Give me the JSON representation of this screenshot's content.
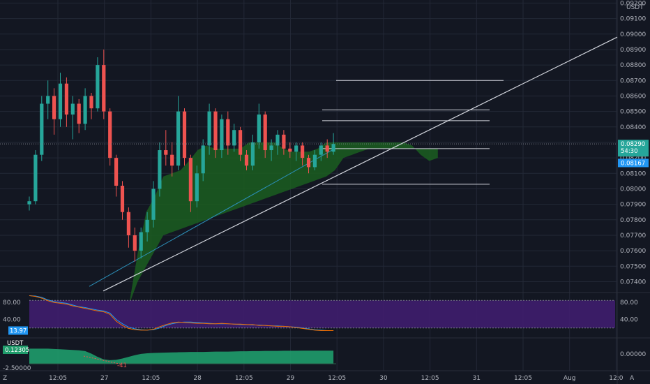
{
  "quote_currency": "USDT",
  "colors": {
    "background": "#131722",
    "grid": "#232836",
    "up": "#26a69a",
    "down": "#ef5350",
    "cloud": "#1b5e20",
    "rsi_band": "#3f1d6e",
    "stoch_fill": "#1f9c6b",
    "trendline": "#d1d4dc"
  },
  "chart_data": [
    {
      "type": "candlestick",
      "title": "",
      "y_axis_ticks": [
        "0.07400",
        "0.07500",
        "0.07600",
        "0.07700",
        "0.07800",
        "0.07900",
        "0.08000",
        "0.08100",
        "0.08200",
        "0.08300",
        "0.08400",
        "0.08500",
        "0.08600",
        "0.08700",
        "0.08800",
        "0.08900",
        "0.09000",
        "0.09100",
        "0.09200"
      ],
      "ylim": [
        0.0733,
        0.0922
      ],
      "x_axis_ticks": [
        "12:05",
        "27",
        "12:05",
        "28",
        "12:05",
        "29",
        "12:05",
        "30",
        "12:05",
        "31",
        "12:05",
        "Aug",
        "12:0"
      ],
      "last_price": "0.08290",
      "countdown": "54:30",
      "cloud_price": "0.08167",
      "series": [
        {
          "name": "candles",
          "ohlc": [
            [
              0.079,
              0.0795,
              0.0786,
              0.0792
            ],
            [
              0.0792,
              0.0825,
              0.079,
              0.0822
            ],
            [
              0.0822,
              0.086,
              0.0818,
              0.0855
            ],
            [
              0.0855,
              0.087,
              0.0845,
              0.086
            ],
            [
              0.086,
              0.0865,
              0.0835,
              0.0845
            ],
            [
              0.0845,
              0.0875,
              0.084,
              0.0868
            ],
            [
              0.0868,
              0.0872,
              0.084,
              0.0848
            ],
            [
              0.0848,
              0.086,
              0.0832,
              0.0855
            ],
            [
              0.0855,
              0.0858,
              0.0836,
              0.0842
            ],
            [
              0.0842,
              0.0865,
              0.0838,
              0.086
            ],
            [
              0.086,
              0.0862,
              0.0845,
              0.0852
            ],
            [
              0.0852,
              0.0885,
              0.085,
              0.088
            ],
            [
              0.088,
              0.089,
              0.0845,
              0.085
            ],
            [
              0.085,
              0.0852,
              0.0815,
              0.082
            ],
            [
              0.082,
              0.0822,
              0.0795,
              0.0802
            ],
            [
              0.0802,
              0.0805,
              0.078,
              0.0785
            ],
            [
              0.0785,
              0.0788,
              0.0762,
              0.077
            ],
            [
              0.077,
              0.0775,
              0.0753,
              0.076
            ],
            [
              0.076,
              0.0775,
              0.0755,
              0.0772
            ],
            [
              0.0772,
              0.0785,
              0.0766,
              0.078
            ],
            [
              0.078,
              0.0805,
              0.0775,
              0.08
            ],
            [
              0.08,
              0.083,
              0.0795,
              0.0825
            ],
            [
              0.0825,
              0.0838,
              0.0815,
              0.0822
            ],
            [
              0.0822,
              0.083,
              0.0808,
              0.0815
            ],
            [
              0.0815,
              0.086,
              0.0812,
              0.085
            ],
            [
              0.085,
              0.0852,
              0.0815,
              0.082
            ],
            [
              0.082,
              0.0822,
              0.0785,
              0.0792
            ],
            [
              0.0792,
              0.0815,
              0.0788,
              0.081
            ],
            [
              0.081,
              0.0832,
              0.0805,
              0.0828
            ],
            [
              0.0828,
              0.0855,
              0.0822,
              0.085
            ],
            [
              0.085,
              0.0852,
              0.082,
              0.0825
            ],
            [
              0.0825,
              0.0848,
              0.082,
              0.0845
            ],
            [
              0.0845,
              0.085,
              0.0822,
              0.0828
            ],
            [
              0.0828,
              0.0842,
              0.0824,
              0.0838
            ],
            [
              0.0838,
              0.084,
              0.0818,
              0.0822
            ],
            [
              0.0822,
              0.0825,
              0.0812,
              0.0815
            ],
            [
              0.0815,
              0.0835,
              0.0812,
              0.083
            ],
            [
              0.083,
              0.0855,
              0.0826,
              0.0848
            ],
            [
              0.0848,
              0.085,
              0.082,
              0.0825
            ],
            [
              0.0825,
              0.0832,
              0.0818,
              0.0828
            ],
            [
              0.0828,
              0.0838,
              0.0822,
              0.0835
            ],
            [
              0.0835,
              0.0838,
              0.0822,
              0.0826
            ],
            [
              0.0826,
              0.083,
              0.082,
              0.0824
            ],
            [
              0.0824,
              0.083,
              0.0818,
              0.0828
            ],
            [
              0.0828,
              0.083,
              0.0815,
              0.082
            ],
            [
              0.082,
              0.0822,
              0.081,
              0.0814
            ],
            [
              0.0814,
              0.0825,
              0.0812,
              0.0822
            ],
            [
              0.0822,
              0.083,
              0.0818,
              0.0828
            ],
            [
              0.0828,
              0.0832,
              0.082,
              0.0824
            ],
            [
              0.0824,
              0.0836,
              0.0822,
              0.0829
            ]
          ]
        }
      ]
    },
    {
      "type": "line",
      "title": "",
      "y_axis_ticks": [
        "80.00",
        "40.00"
      ],
      "ylim": [
        0,
        100
      ],
      "value_badges": [
        "13.97"
      ],
      "series": [
        {
          "values": [
            96,
            95,
            92,
            86,
            82,
            80,
            78,
            74,
            70,
            68,
            65,
            62,
            60,
            55,
            40,
            30,
            22,
            18,
            16,
            15,
            16,
            20,
            26,
            30,
            33,
            34,
            34,
            33,
            32,
            31,
            30,
            30,
            30,
            29,
            28,
            28,
            27,
            27,
            26,
            25,
            25,
            24,
            23,
            22,
            20,
            18,
            16,
            15,
            14,
            14
          ]
        },
        {
          "values": [
            96,
            94,
            90,
            84,
            80,
            78,
            76,
            72,
            69,
            66,
            63,
            60,
            58,
            52,
            36,
            26,
            19,
            16,
            15,
            15,
            17,
            23,
            28,
            32,
            34,
            33,
            32,
            31,
            31,
            30,
            30,
            31,
            30,
            29,
            29,
            28,
            28,
            26,
            26,
            25,
            24,
            24,
            23,
            21,
            19,
            17,
            15,
            14,
            14,
            14
          ]
        }
      ]
    },
    {
      "type": "area",
      "title": "",
      "y_axis_ticks": [
        "0.00000",
        "-2.50000"
      ],
      "value_badges": [
        "0.12305"
      ],
      "series": [
        {
          "name": "USDT",
          "values": [
            1.0,
            1.0,
            1.0,
            1.0,
            0.98,
            0.96,
            0.94,
            0.92,
            0.9,
            0.85,
            0.7,
            0.5,
            0.35,
            0.3,
            0.32,
            0.4,
            0.5,
            0.6,
            0.68,
            0.72,
            0.74,
            0.75,
            0.76,
            0.77,
            0.78,
            0.79,
            0.8,
            0.8,
            0.8,
            0.81,
            0.82,
            0.82,
            0.82,
            0.83,
            0.84,
            0.84,
            0.85,
            0.85,
            0.86,
            0.86,
            0.86,
            0.87,
            0.87,
            0.87,
            0.88,
            0.88,
            0.88,
            0.88,
            0.88,
            0.88
          ]
        }
      ],
      "annotations": [
        "-41"
      ]
    }
  ]
}
